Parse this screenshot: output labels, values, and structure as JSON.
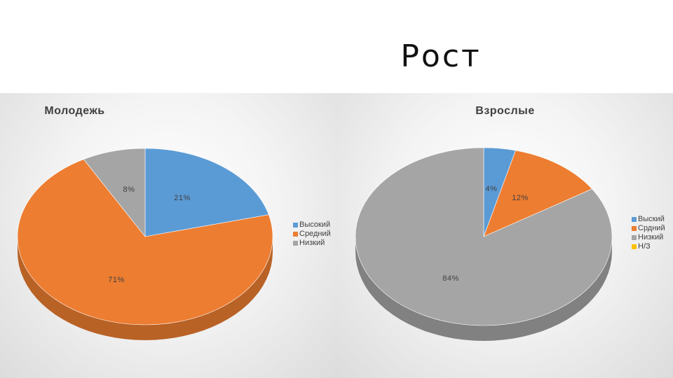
{
  "slide": {
    "title": "Рост"
  },
  "chart_data": [
    {
      "type": "pie",
      "title": "Молодежь",
      "categories": [
        "Высокий",
        "Средний",
        "Низкий"
      ],
      "values": [
        21,
        71,
        8
      ],
      "data_labels": [
        "21%",
        "71%",
        "8%"
      ],
      "colors": [
        "#5b9bd5",
        "#ed7d31",
        "#a5a5a5"
      ],
      "legend_position": "right",
      "style": "3d"
    },
    {
      "type": "pie",
      "title": "Взрослые",
      "categories": [
        "Выский",
        "Срдний",
        "Низкий",
        "Н/З"
      ],
      "values": [
        4,
        12,
        84,
        0
      ],
      "data_labels": [
        "4%",
        "12%",
        "84%",
        ""
      ],
      "colors": [
        "#5b9bd5",
        "#ed7d31",
        "#a5a5a5",
        "#ffc000"
      ],
      "legend_position": "right",
      "style": "3d"
    }
  ]
}
